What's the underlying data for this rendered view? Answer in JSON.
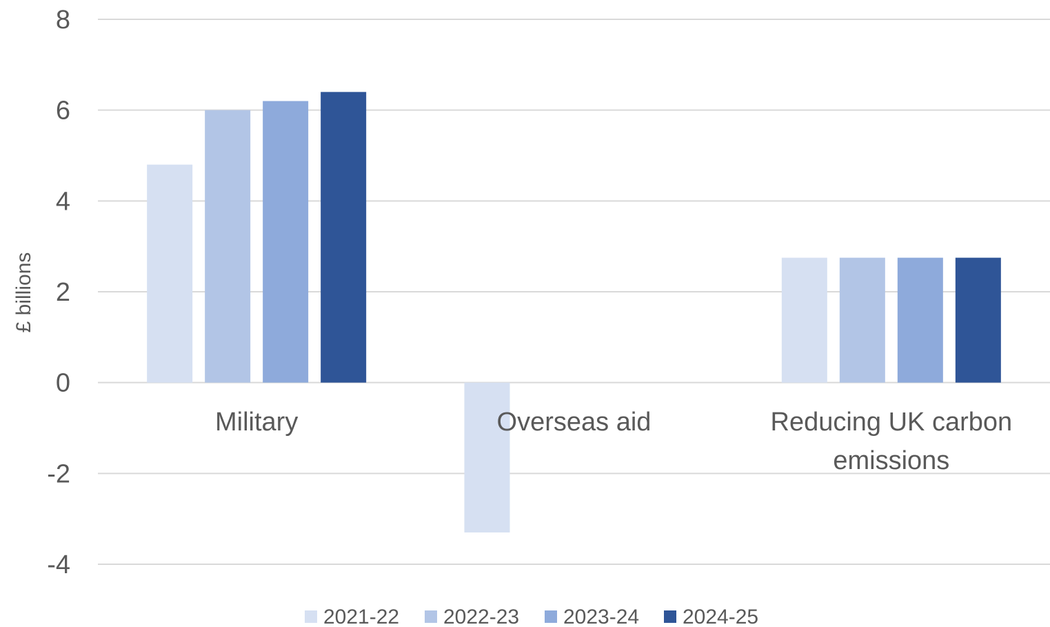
{
  "chart_data": {
    "type": "bar",
    "categories": [
      [
        "Military"
      ],
      [
        "Overseas aid"
      ],
      [
        "Reducing UK carbon",
        "emissions"
      ]
    ],
    "series": [
      {
        "name": "2021-22",
        "color": "#d6e0f2",
        "values": [
          4.8,
          -3.3,
          2.75
        ]
      },
      {
        "name": "2022-23",
        "color": "#b2c5e6",
        "values": [
          6.0,
          null,
          2.75
        ]
      },
      {
        "name": "2023-24",
        "color": "#8eaadb",
        "values": [
          6.2,
          null,
          2.75
        ]
      },
      {
        "name": "2024-25",
        "color": "#2f5597",
        "values": [
          6.4,
          null,
          2.75
        ]
      }
    ],
    "ylabel": "£ billions",
    "xlabel": "",
    "title": "",
    "ylim": [
      -4,
      8
    ],
    "yticks": [
      "8",
      "6",
      "4",
      "2",
      "0",
      "-2",
      "-4"
    ],
    "ytick_values": [
      8,
      6,
      4,
      2,
      0,
      -2,
      -4
    ],
    "grid": true,
    "legend_position": "bottom"
  }
}
